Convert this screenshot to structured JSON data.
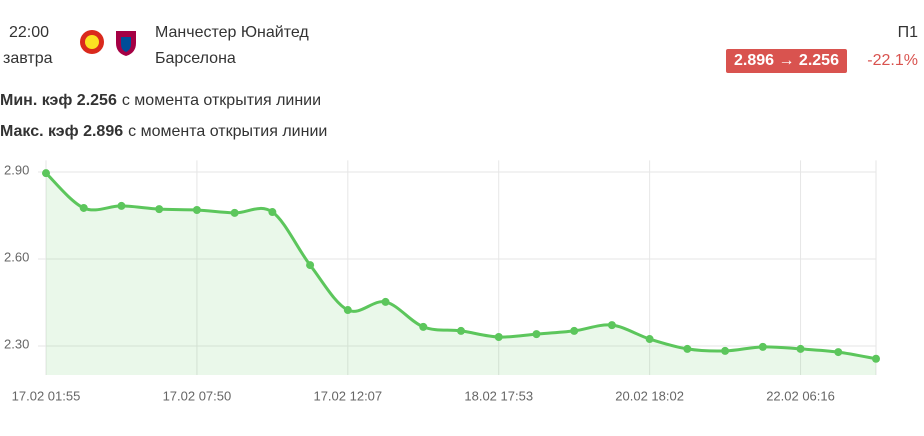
{
  "header": {
    "time": "22:00",
    "day": "завтра",
    "home_team": "Манчестер Юнайтед",
    "away_team": "Барселона",
    "market": "П1",
    "odds_change": "2.896 → 2.256",
    "percent_change": "-22.1%"
  },
  "stats": [
    {
      "label": "Мин. кэф 2.256",
      "text": "с момента открытия линии"
    },
    {
      "label": "Макс. кэф 2.896",
      "text": "с момента открытия линии"
    }
  ],
  "chart_data": {
    "type": "line",
    "categories": [
      "17.02 01:55",
      null,
      null,
      null,
      "17.02 07:50",
      null,
      null,
      null,
      "17.02 12:07",
      null,
      null,
      null,
      "18.02 17:53",
      null,
      null,
      null,
      "20.02 18:02",
      null,
      null,
      null,
      "22.02 06:16",
      null,
      null
    ],
    "values": [
      2.896,
      2.776,
      2.783,
      2.772,
      2.769,
      2.759,
      2.762,
      2.579,
      2.424,
      2.452,
      2.366,
      2.352,
      2.331,
      2.341,
      2.352,
      2.372,
      2.324,
      2.29,
      2.283,
      2.297,
      2.29,
      2.279,
      2.256
    ],
    "color": "#5cc65c",
    "ylim": [
      2.2,
      2.94
    ],
    "yticks": [
      {
        "value": 2.3,
        "label": "2.30"
      },
      {
        "value": 2.6,
        "label": "2.60"
      },
      {
        "value": 2.9,
        "label": "2.90"
      }
    ],
    "grid": true
  }
}
